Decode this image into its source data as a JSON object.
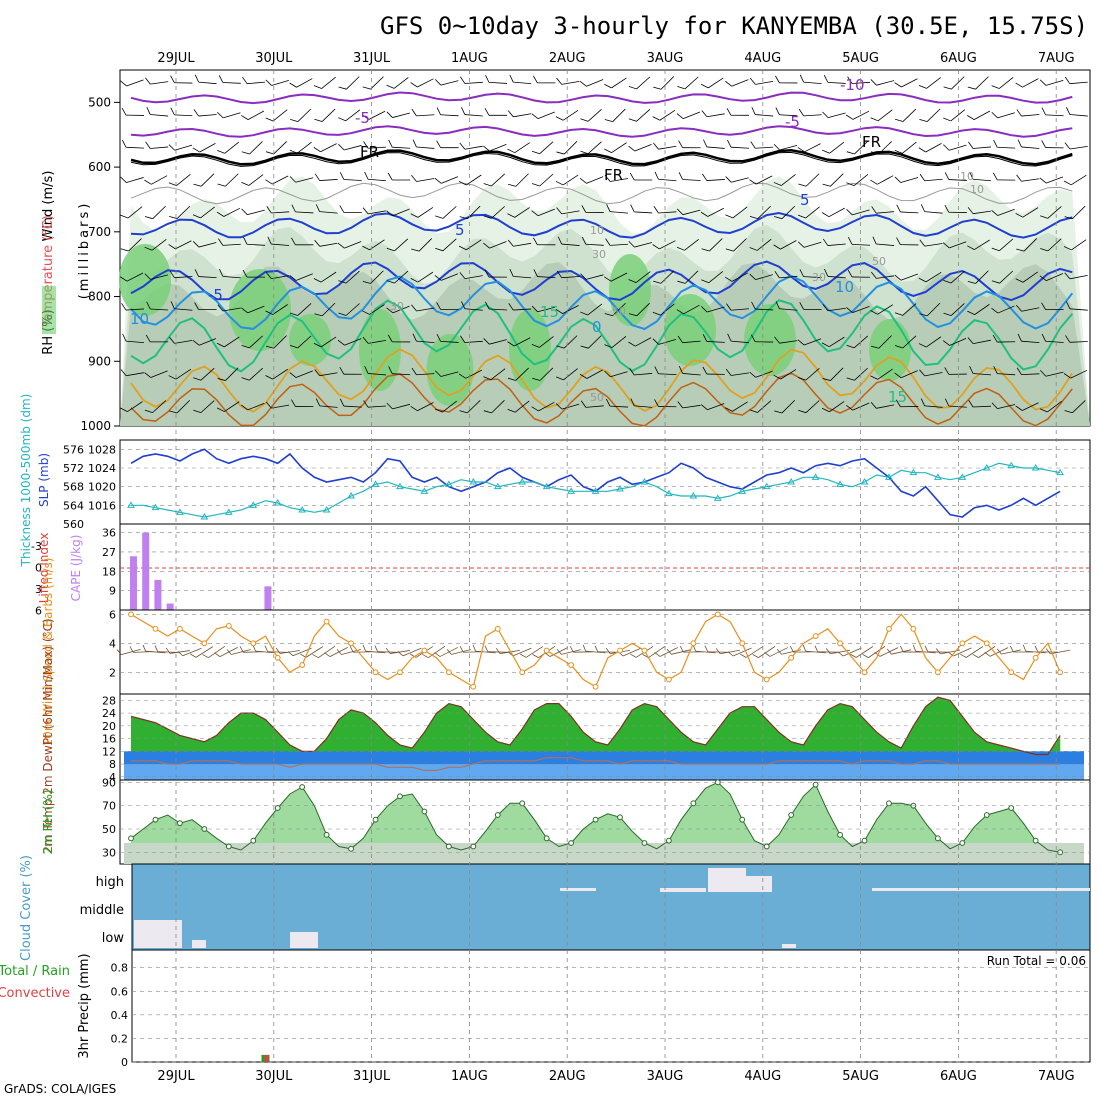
{
  "title": "GFS 0~10day 3-hourly for KANYEMBA (30.5E, 15.75S)",
  "footer": "GrADS: COLA/IGES",
  "dates": [
    "29JUL",
    "30JUL",
    "31JUL",
    "1AUG",
    "2AUG",
    "3AUG",
    "4AUG",
    "5AUG",
    "6AUG",
    "7AUG"
  ],
  "colors": {
    "slp": "#1f3fd0",
    "thickness": "#22b5c0",
    "cape": "#c080f0",
    "wind": "#e8901c",
    "barb": "#705030",
    "cloud": "#6aaed6",
    "rh": "#22c022",
    "grid": "#888888"
  },
  "chart_data": [
    {
      "type": "contour",
      "ylabel_parts": [
        "Wind (m/s)",
        "Temperature (°C)",
        "RH (%)"
      ],
      "yaxis_label": "(millibars)",
      "yticks": [
        "500",
        "600",
        "700",
        "800",
        "900",
        "1000"
      ],
      "ylim": [
        450,
        1000
      ],
      "contour_labels": [
        "-10",
        "-5",
        "-5",
        "FR",
        "FR",
        "FR",
        "5",
        "5",
        "-5",
        "10",
        "10",
        "10",
        "15",
        "15",
        "0",
        "10",
        "30",
        "30",
        "30",
        "50",
        "50",
        "50",
        "10"
      ]
    },
    {
      "type": "line",
      "ylabel_left": "Thickness 1000-500mb (dm)",
      "ylabel_right": "SLP (mb)",
      "yticks_left": [
        "576",
        "572",
        "568",
        "564",
        "560"
      ],
      "yticks_right": [
        "1028",
        "1024",
        "1020",
        "1016"
      ],
      "series": [
        {
          "name": "SLP",
          "unit": "mb",
          "values": [
            1025,
            1026.5,
            1027,
            1026.5,
            1025.5,
            1027,
            1028,
            1026,
            1025,
            1026,
            1026.5,
            1026,
            1025,
            1027,
            1024,
            1022,
            1021,
            1021.5,
            1022,
            1021,
            1023,
            1026,
            1025.5,
            1022,
            1021,
            1022,
            1020,
            1019,
            1020,
            1021,
            1023,
            1024,
            1022,
            1021,
            1020,
            1021.5,
            1022.5,
            1020,
            1019,
            1021,
            1022,
            1020.5,
            1021,
            1022,
            1023,
            1025,
            1024,
            1022,
            1021,
            1020,
            1019.5,
            1021,
            1022.5,
            1023,
            1024,
            1023,
            1024.5,
            1025,
            1024.5,
            1025.5,
            1026,
            1024,
            1022,
            1019,
            1018,
            1020,
            1017,
            1014,
            1013.5,
            1015.5,
            1016,
            1015,
            1016,
            1017.5,
            1016,
            1017.5,
            1019
          ]
        },
        {
          "name": "Thickness",
          "unit": "dm",
          "values": [
            564,
            564,
            563.5,
            563,
            562.5,
            562,
            561.5,
            562,
            562.5,
            563,
            564,
            565,
            564.5,
            563.5,
            563,
            562.5,
            563,
            564.5,
            566,
            567,
            568.5,
            569,
            568,
            567.5,
            567,
            568,
            568.5,
            569.5,
            569,
            569,
            568,
            568.5,
            569,
            569,
            568,
            567.5,
            567,
            567,
            567,
            567,
            567.5,
            568,
            569,
            568,
            566.5,
            566,
            566,
            566,
            565.5,
            566,
            567,
            567.5,
            568,
            568.5,
            569,
            570,
            570,
            569.5,
            568.5,
            568,
            569,
            570.5,
            570,
            571.5,
            571,
            571,
            570,
            569.5,
            570,
            571,
            572,
            573,
            572.5,
            572,
            572,
            571.5,
            571
          ]
        }
      ]
    },
    {
      "type": "bar",
      "ylabel_left": "Lifted Index",
      "ylabel_right": "CAPE (J/kg)",
      "yticks_left": [
        "-3",
        "0",
        "3",
        "6"
      ],
      "yticks_right": [
        "36",
        "27",
        "18",
        "9"
      ],
      "series": [
        {
          "name": "CAPE",
          "values": [
            {
              "t": 0.0,
              "v": 25
            },
            {
              "t": 0.125,
              "v": 36
            },
            {
              "t": 0.25,
              "v": 14
            },
            {
              "t": 0.375,
              "v": 3
            },
            {
              "t": 1.375,
              "v": 11
            }
          ]
        }
      ]
    },
    {
      "type": "line",
      "ylabel": "10m Wind Speed & Barbs (m/s)",
      "yticks": [
        "6",
        "4",
        "2"
      ],
      "ylim": [
        0.5,
        6
      ],
      "series": [
        {
          "name": "Wind speed",
          "values": [
            6,
            5.5,
            5,
            4.5,
            5,
            4.5,
            4,
            5,
            5.2,
            4.5,
            4,
            4.5,
            3,
            2,
            2.5,
            4.5,
            5.5,
            4.5,
            4,
            3,
            2,
            1.5,
            2,
            3,
            3.5,
            3,
            2,
            1.5,
            1,
            4.5,
            5,
            3.5,
            2,
            2.5,
            3.5,
            3,
            2.5,
            1.5,
            1,
            3,
            3.5,
            4,
            3.5,
            2,
            1.5,
            2,
            4,
            5.5,
            6,
            5.5,
            4,
            2,
            1.5,
            2,
            3,
            4,
            4.5,
            5,
            4,
            3,
            2,
            3,
            5,
            6,
            5,
            3,
            2,
            3,
            4,
            4.5,
            4,
            3,
            2,
            1.5,
            3,
            4,
            2
          ]
        }
      ]
    },
    {
      "type": "area",
      "ylabel": "2m Temp 2m DewPt (6hr Min/Max) (°C)",
      "yticks": [
        "28",
        "24",
        "20",
        "16",
        "12",
        "8",
        "4"
      ],
      "ylim": [
        3,
        30
      ],
      "series": [
        {
          "name": "2m Temp",
          "values": [
            23,
            22,
            21,
            19,
            17,
            16,
            15,
            17,
            21,
            24,
            24,
            22,
            18,
            14,
            12,
            12,
            16,
            22,
            25,
            24,
            21,
            17,
            14,
            13,
            18,
            24,
            27,
            26,
            22,
            18,
            15,
            14,
            19,
            25,
            27,
            27,
            23,
            18,
            15,
            14,
            19,
            25,
            27,
            26,
            22,
            18,
            15,
            14,
            19,
            24,
            26,
            26,
            22,
            18,
            15,
            14,
            20,
            25,
            27,
            26,
            22,
            18,
            15,
            13,
            20,
            26,
            29,
            28,
            23,
            18,
            15,
            14,
            13,
            12,
            11,
            11,
            17
          ]
        },
        {
          "name": "2m DewPt",
          "values": [
            9,
            9,
            9,
            8,
            8,
            9,
            9,
            9,
            9,
            8,
            8,
            8,
            8,
            7,
            8,
            8,
            8,
            8,
            8,
            8,
            8,
            7,
            7,
            7,
            6,
            6,
            7,
            7,
            8,
            9,
            9,
            9,
            9,
            9,
            10,
            10,
            10,
            9,
            9,
            9,
            8,
            9,
            9,
            9,
            9,
            8,
            8,
            8,
            8,
            8,
            8,
            8,
            8,
            9,
            9,
            9,
            9,
            9,
            9,
            8,
            9,
            9,
            9,
            8,
            8,
            9,
            9,
            8,
            8,
            8,
            8,
            8,
            8,
            8,
            8,
            8,
            8
          ]
        }
      ]
    },
    {
      "type": "area",
      "ylabel": "2m RH (%)",
      "yticks": [
        "90",
        "70",
        "50",
        "30"
      ],
      "ylim": [
        20,
        92
      ],
      "series": [
        {
          "name": "2m RH",
          "values": [
            42,
            50,
            58,
            62,
            55,
            58,
            50,
            42,
            35,
            32,
            40,
            55,
            68,
            80,
            86,
            70,
            45,
            35,
            33,
            42,
            58,
            70,
            78,
            80,
            65,
            45,
            35,
            32,
            35,
            48,
            62,
            72,
            72,
            58,
            42,
            35,
            38,
            50,
            58,
            63,
            60,
            48,
            38,
            33,
            40,
            58,
            72,
            85,
            90,
            80,
            58,
            40,
            35,
            45,
            62,
            78,
            88,
            65,
            45,
            35,
            40,
            58,
            72,
            72,
            70,
            55,
            42,
            33,
            38,
            52,
            62,
            65,
            68,
            55,
            40,
            32,
            30
          ]
        }
      ]
    },
    {
      "type": "heatmap",
      "ylabel": "Cloud Cover (%)",
      "levels": [
        "high",
        "middle",
        "low"
      ]
    },
    {
      "type": "bar",
      "ylabel": "3hr Precip (mm)",
      "legend": [
        "Total / Rain",
        "Convective"
      ],
      "annotation": "Run Total = 0.06",
      "yticks": [
        "0.8",
        "0.6",
        "0.4",
        "0.2",
        "0"
      ],
      "ylim": [
        0,
        0.95
      ],
      "series": [
        {
          "name": "Total / Rain",
          "values": [
            {
              "t": 1.375,
              "v": 0.06
            }
          ]
        },
        {
          "name": "Convective",
          "values": [
            {
              "t": 1.375,
              "v": 0.06
            }
          ]
        }
      ]
    }
  ]
}
